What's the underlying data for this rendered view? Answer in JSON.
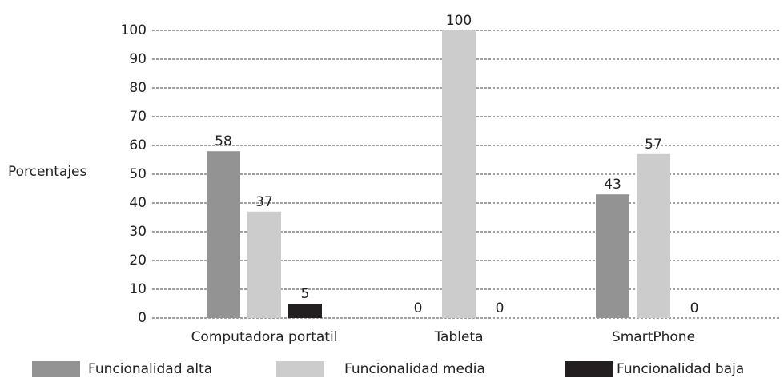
{
  "chart_data": {
    "type": "bar",
    "y_label": "Porcentajes",
    "categories": [
      "Computadora portatil",
      "Tableta",
      "SmartPhone"
    ],
    "series": [
      {
        "name": "Funcionalidad alta",
        "color": "#939393",
        "values": [
          58,
          0,
          43
        ]
      },
      {
        "name": "Funcionalidad media",
        "color": "#cccccc",
        "values": [
          37,
          100,
          57
        ]
      },
      {
        "name": "Funcionalidad baja",
        "color": "#231f20",
        "values": [
          5,
          0,
          0
        ]
      }
    ],
    "ylim": [
      0,
      100
    ],
    "yticks": [
      0,
      10,
      20,
      30,
      40,
      50,
      60,
      70,
      80,
      90,
      100
    ],
    "grid": true,
    "legend": "bottom"
  }
}
